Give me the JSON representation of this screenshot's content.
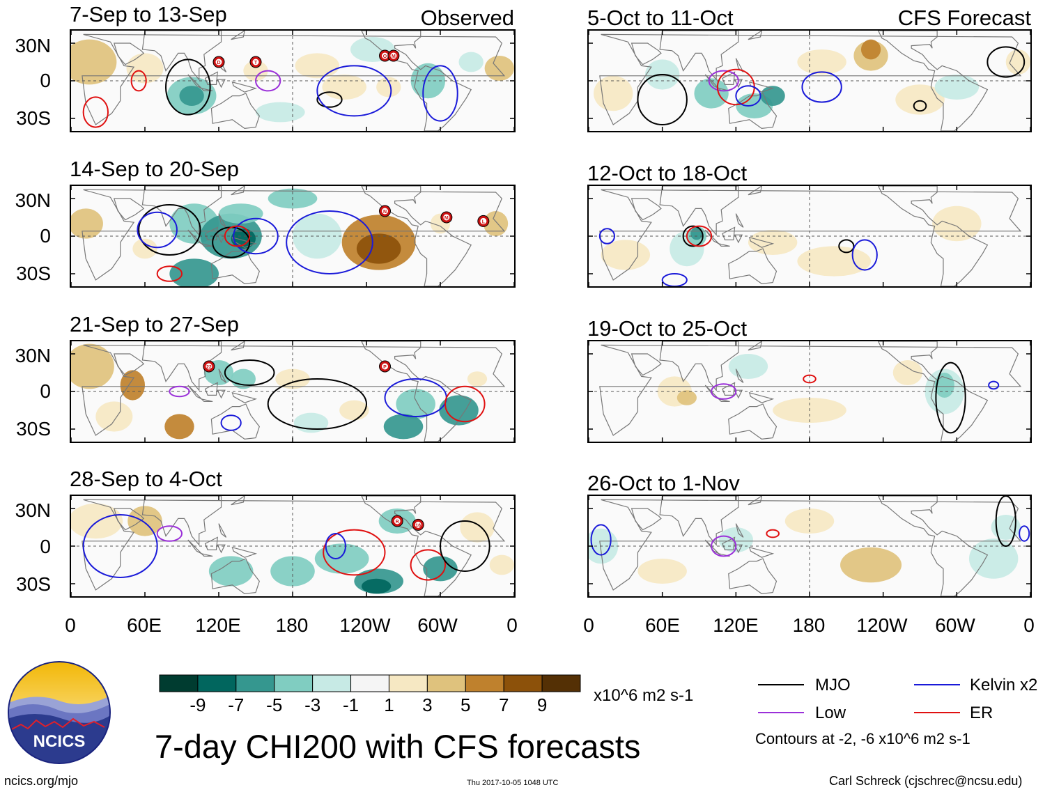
{
  "chart_data": {
    "type": "heatmap",
    "title": "7-day CHI200 with CFS forecasts",
    "variable": "CHI200 (200-hPa velocity potential anomaly)",
    "units": "x10^6 m2 s-1",
    "lat_ticks": [
      "30N",
      "0",
      "30S"
    ],
    "lon_ticks": [
      "0",
      "60E",
      "120E",
      "180",
      "120W",
      "60W",
      "0"
    ],
    "lat_range": [
      -40,
      40
    ],
    "lon_range": [
      0,
      360
    ],
    "colorbar": {
      "labels": [
        "-9",
        "-7",
        "-5",
        "-3",
        "-1",
        "1",
        "3",
        "5",
        "7",
        "9"
      ],
      "colors": [
        "#003c30",
        "#01665e",
        "#35978f",
        "#80cdc1",
        "#c7eae5",
        "#f5f5f5",
        "#f6e8c3",
        "#dfc27d",
        "#bf812d",
        "#8c510a",
        "#543005"
      ]
    },
    "columns": [
      {
        "label": "Observed",
        "panels": [
          {
            "period": "7-Sep to 13-Sep",
            "storms": [
              "D",
              "T",
              "O",
              "M"
            ]
          },
          {
            "period": "14-Sep to 20-Sep",
            "storms": [
              "N",
              "M",
              "L"
            ]
          },
          {
            "period": "21-Sep to 27-Sep",
            "storms": [
              "22",
              "P"
            ]
          },
          {
            "period": "28-Sep to 4-Oct",
            "storms": [
              "R",
              "16"
            ]
          }
        ]
      },
      {
        "label": "CFS Forecast",
        "panels": [
          {
            "period": "5-Oct to 11-Oct",
            "storms": []
          },
          {
            "period": "12-Oct to 18-Oct",
            "storms": []
          },
          {
            "period": "19-Oct to 25-Oct",
            "storms": []
          },
          {
            "period": "26-Oct to 1-Nov",
            "storms": []
          }
        ]
      }
    ],
    "legend": [
      {
        "label": "MJO",
        "color": "#000000"
      },
      {
        "label": "Kelvin x2",
        "color": "#1a1ad9"
      },
      {
        "label": "Low",
        "color": "#9b30d9"
      },
      {
        "label": "ER",
        "color": "#e01010"
      }
    ],
    "contours_note": "Contours at -2, -6 x10^6 m2 s-1"
  },
  "logo_text": "NCICS",
  "footer": {
    "url": "ncics.org/mjo",
    "timestamp": "Thu 2017-10-05 1048 UTC",
    "author": "Carl Schreck (cjschrec@ncsu.edu)"
  }
}
